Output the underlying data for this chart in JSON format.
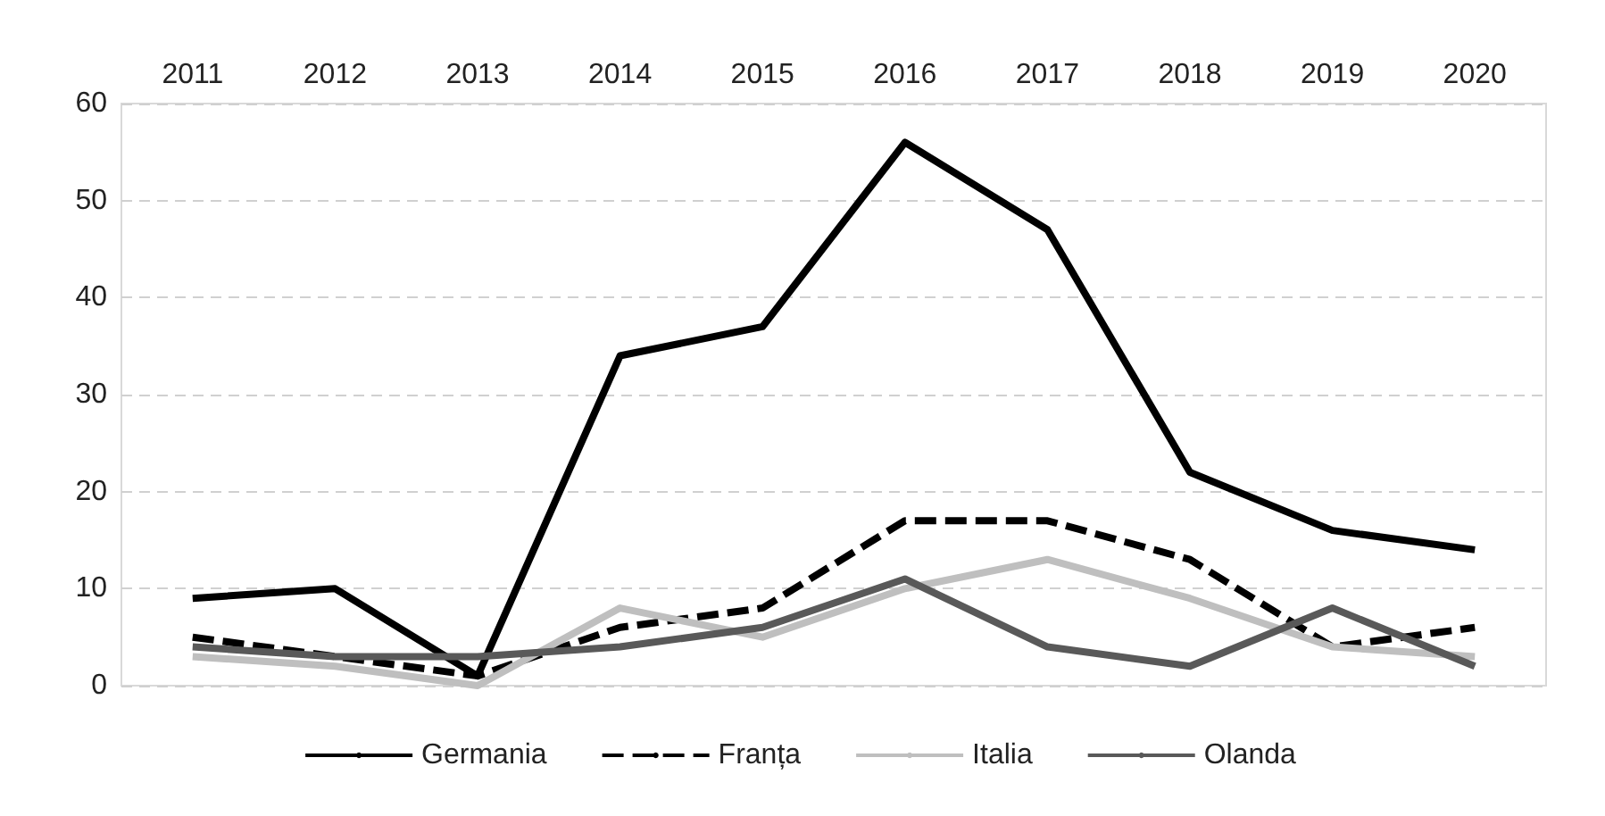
{
  "chart_data": {
    "type": "line",
    "categories": [
      "2011",
      "2012",
      "2013",
      "2014",
      "2015",
      "2016",
      "2017",
      "2018",
      "2019",
      "2020"
    ],
    "series": [
      {
        "name": "Germania",
        "color": "#000000",
        "values": [
          9,
          10,
          1,
          34,
          37,
          56,
          47,
          22,
          16,
          14
        ]
      },
      {
        "name": "Franța",
        "color": "#000000",
        "line_style": "dashed",
        "values": [
          5,
          3,
          1,
          6,
          8,
          17,
          17,
          13,
          4,
          6
        ]
      },
      {
        "name": "Italia",
        "color": "#bfbfbf",
        "values": [
          3,
          2,
          0,
          8,
          5,
          10,
          13,
          9,
          4,
          3
        ]
      },
      {
        "name": "Olanda",
        "color": "#595959",
        "values": [
          4,
          3,
          3,
          4,
          6,
          11,
          4,
          2,
          8,
          2
        ]
      }
    ],
    "ylim": [
      0,
      60
    ],
    "yticks": [
      0,
      10,
      20,
      30,
      40,
      50,
      60
    ],
    "grid": "y",
    "legend": "bottom",
    "marker": "none",
    "line_style": "solid"
  }
}
